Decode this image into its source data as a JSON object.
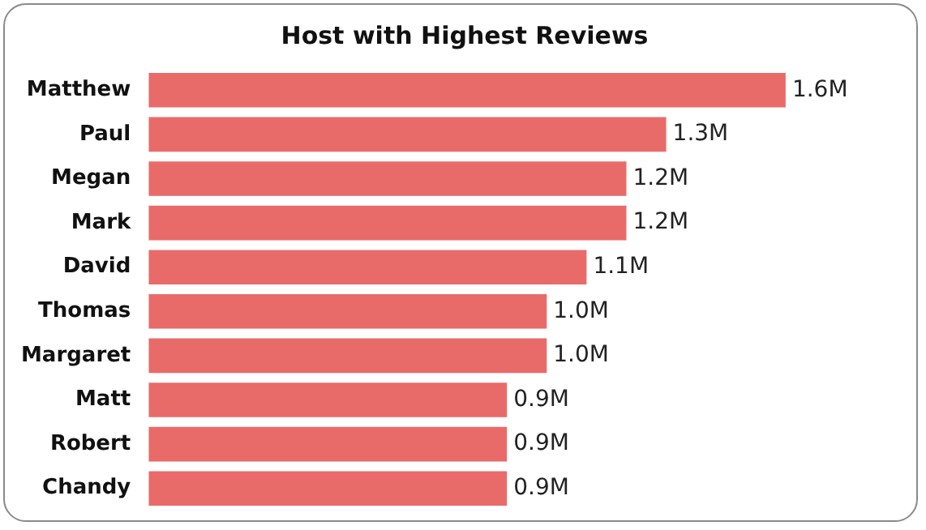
{
  "chart_data": {
    "type": "bar",
    "orientation": "horizontal",
    "tick_labels": "y",
    "title": "Host with Highest Reviews",
    "categories": [
      "Matthew",
      "Paul",
      "Megan",
      "Mark",
      "David",
      "Thomas",
      "Margaret",
      "Matt",
      "Robert",
      "Chandy"
    ],
    "values": [
      1.6,
      1.3,
      1.2,
      1.2,
      1.1,
      1.0,
      1.0,
      0.9,
      0.9,
      0.9
    ],
    "value_labels": [
      "1.6M",
      "1.3M",
      "1.2M",
      "1.2M",
      "1.1M",
      "1.0M",
      "1.0M",
      "0.9M",
      "0.9M",
      "0.9M"
    ],
    "color": "#e86b6a",
    "legend": false
  }
}
